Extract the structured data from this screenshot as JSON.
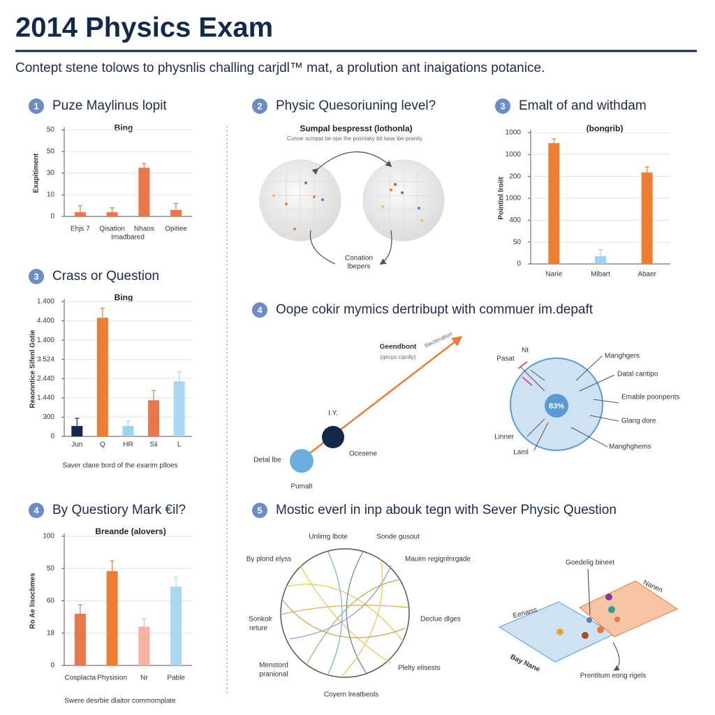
{
  "header": {
    "title": "2014 Physics Exam",
    "subtitle": "Contept stene tolows to physnlis challing carjdl™ mat, a prolution ant inaigations potanice."
  },
  "charts": [
    {
      "type": "bar",
      "number": "1",
      "heading": "Puze Maylinus lopit",
      "title": "Bing",
      "y_label": "Exapitiment",
      "x_label": "Imadbared",
      "categories": [
        "Ehjs 7",
        "Qisation",
        "Nhaos",
        "Opitiee"
      ],
      "values": [
        2,
        2,
        22.5,
        3
      ],
      "errors": [
        3,
        2,
        2,
        3
      ],
      "colors": [
        "#e8774a",
        "#e8774a",
        "#e8774a",
        "#e8774a"
      ],
      "ylim": [
        0,
        40
      ],
      "yticks": [
        0,
        10,
        {
          "value": 20,
          "label": "30"
        },
        {
          "value": 30,
          "label": "50"
        },
        {
          "value": 40,
          "label": "50"
        }
      ]
    },
    {
      "type": "bar",
      "number": "3",
      "heading": "Emalt of and withdam",
      "title": "(bongrib)",
      "y_label": "Pointinl lroiit",
      "categories": [
        "Narie",
        "Mibart",
        "Abaer"
      ],
      "values": [
        552,
        35,
        418
      ],
      "errors": [
        20,
        30,
        25
      ],
      "colors": [
        "#ed7d31",
        "#9dd3f2",
        "#ed7d31"
      ],
      "ylim": [
        0,
        600
      ],
      "yticks": [
        0,
        {
          "value": 100,
          "label": "50"
        },
        {
          "value": 200,
          "label": "400"
        },
        {
          "value": 300,
          "label": "1000"
        },
        {
          "value": 400,
          "label": "200"
        },
        {
          "value": 500,
          "label": "1000"
        },
        {
          "value": 600,
          "label": "1000"
        }
      ]
    },
    {
      "type": "bar",
      "number": "3",
      "heading": "Crass or Question",
      "title": "Bing",
      "y_label": "Reaonntice Sifenl Gotie",
      "note": "Saver clane bord of the exarim plloes",
      "categories": [
        "Jun",
        "Q",
        "HR",
        "Sii",
        "L"
      ],
      "values": [
        54,
        616,
        54,
        188,
        286
      ],
      "errors": [
        40,
        50,
        25,
        50,
        50
      ],
      "colors": [
        "#13294b",
        "#ed7d31",
        "#9dd3f2",
        "#e8774a",
        "#a9d8f0"
      ],
      "ylim": [
        0,
        700
      ],
      "yticks": [
        0,
        {
          "value": 100,
          "label": "300"
        },
        {
          "value": 200,
          "label": "1.440"
        },
        {
          "value": 300,
          "label": "2.440"
        },
        {
          "value": 400,
          "label": "3.524"
        },
        {
          "value": 500,
          "label": "1.400"
        },
        {
          "value": 600,
          "label": "4.400"
        },
        {
          "value": 700,
          "label": "1.400"
        }
      ]
    },
    {
      "type": "bar",
      "number": "4",
      "heading": "By Questiory Mark €il?",
      "title": "Breande (alovers)",
      "y_label": "Ro Ae lisocbmes",
      "note": "Swere desrbie dlaitor commomplate",
      "categories": [
        "Cosplacta",
        "Physision",
        "Nr",
        "Pable"
      ],
      "values": [
        40,
        73,
        30,
        61
      ],
      "errors": [
        7,
        8,
        6,
        7
      ],
      "colors": [
        "#e8774a",
        "#ed7d31",
        "#f6b3a2",
        "#a9d8f0"
      ],
      "ylim": [
        0,
        100
      ],
      "yticks": [
        0,
        {
          "value": 25,
          "label": "18"
        },
        {
          "value": 50,
          "label": "60"
        },
        {
          "value": 75,
          "label": "50"
        },
        100
      ]
    }
  ],
  "diagrams": [
    {
      "number": "2",
      "heading": "Physic Quesoriuning level?",
      "title": "Sumpal bespresst (lothonla)",
      "caption": "Conoe ocmpat be ope the posriiaky bit lasw ibe pranity",
      "labels": [
        "Conation",
        "lbepers"
      ]
    },
    {
      "number": "4",
      "heading": "Oope cokir mymics dertribupt with commuer im.depaft",
      "percent": "83%",
      "labels": [
        "Geendbont",
        "Ibectimation",
        "(qecps cipnlly)",
        "I.Y.",
        "Ocesene",
        "Detal lbe",
        "Pumalt",
        "Nt",
        "Pasat",
        "Manghgers",
        "Datal cantipo",
        "Emable poonpents",
        "Glang dore",
        "Manghghems",
        "Linner",
        "Laml"
      ]
    },
    {
      "number": "5",
      "heading": "Mostic everl in inp abouk tegn with Sever Physic Question",
      "labels": [
        "Unlimg lbote",
        "Sonde gusout",
        "By plond elyss",
        "Mauim regignlnrgade",
        "Sonkolr",
        "reture",
        "Declue dlges",
        "Menstord",
        "pranional",
        "Plelty elisests",
        "Coyern lreatbeols",
        "Goedelig bineet",
        "Nanen",
        "Eenaiss",
        "Bay Nane",
        "Prentitum eong rigels"
      ]
    }
  ]
}
